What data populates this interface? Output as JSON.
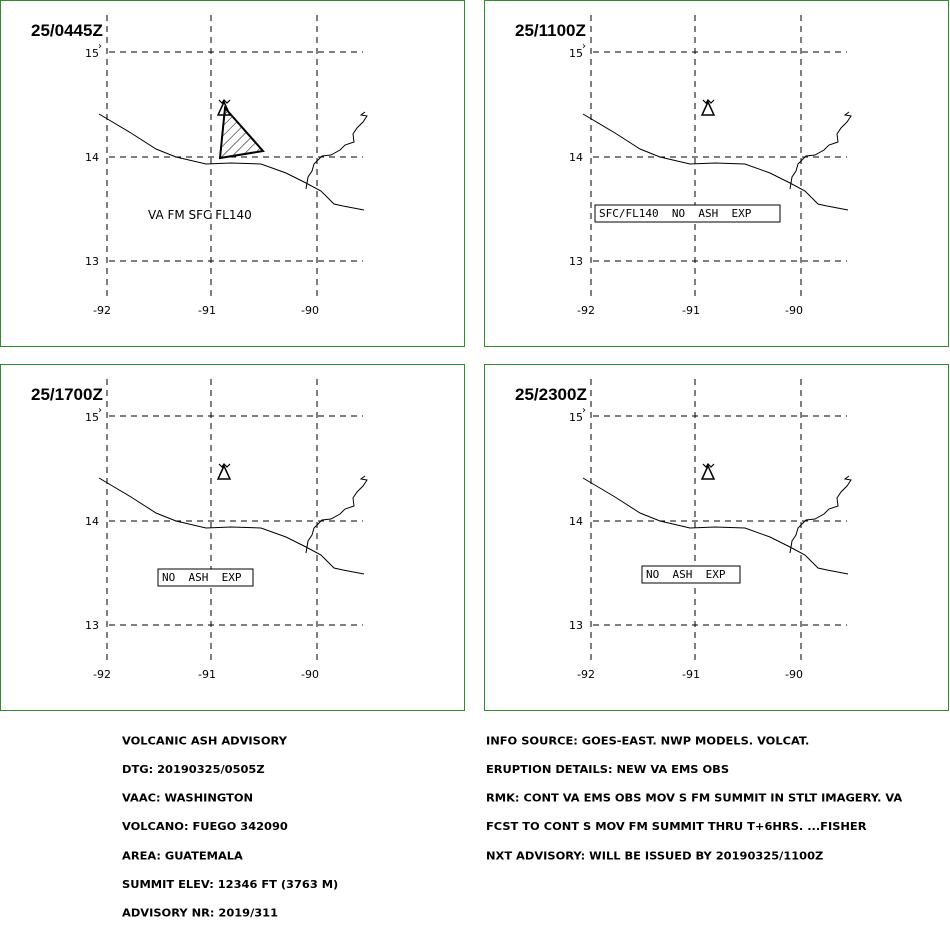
{
  "panels": [
    {
      "id": "p0",
      "title": "25/0445Z",
      "ash_area": true,
      "label": "VA FM SFC FL140",
      "label_boxed": false,
      "label_at": "plain-left"
    },
    {
      "id": "p1",
      "title": "25/1100Z",
      "ash_area": false,
      "label": "SFC/FL140  NO  ASH  EXP",
      "label_boxed": true
    },
    {
      "id": "p2",
      "title": "25/1700Z",
      "ash_area": false,
      "label": "NO  ASH  EXP",
      "label_boxed": true
    },
    {
      "id": "p3",
      "title": "25/2300Z",
      "ash_area": false,
      "label": "NO  ASH  EXP",
      "label_boxed": true
    }
  ],
  "map": {
    "lat_ticks": [
      "15",
      "14",
      "13"
    ],
    "lon_ticks": [
      "-92",
      "-91",
      "-90"
    ],
    "volcano_symbol": "volcano-icon",
    "colors": {
      "frame": "#2e8b2e",
      "lines": "#000000"
    }
  },
  "advisory_left": [
    "VOLCANIC ASH ADVISORY",
    "DTG: 20190325/0505Z",
    "VAAC: WASHINGTON",
    "VOLCANO: FUEGO 342090",
    "AREA: GUATEMALA",
    "SUMMIT ELEV: 12346 FT (3763 M)",
    "ADVISORY NR: 2019/311"
  ],
  "advisory_right": [
    "INFO SOURCE: GOES-EAST. NWP MODELS. VOLCAT.",
    "ERUPTION DETAILS: NEW VA EMS OBS",
    "RMK: CONT VA EMS OBS MOV S FM SUMMIT IN STLT IMAGERY. VA",
    "FCST TO CONT S MOV FM SUMMIT THRU T+6HRS. ...FISHER",
    "NXT ADVISORY: WILL BE ISSUED BY 20190325/1100Z"
  ]
}
